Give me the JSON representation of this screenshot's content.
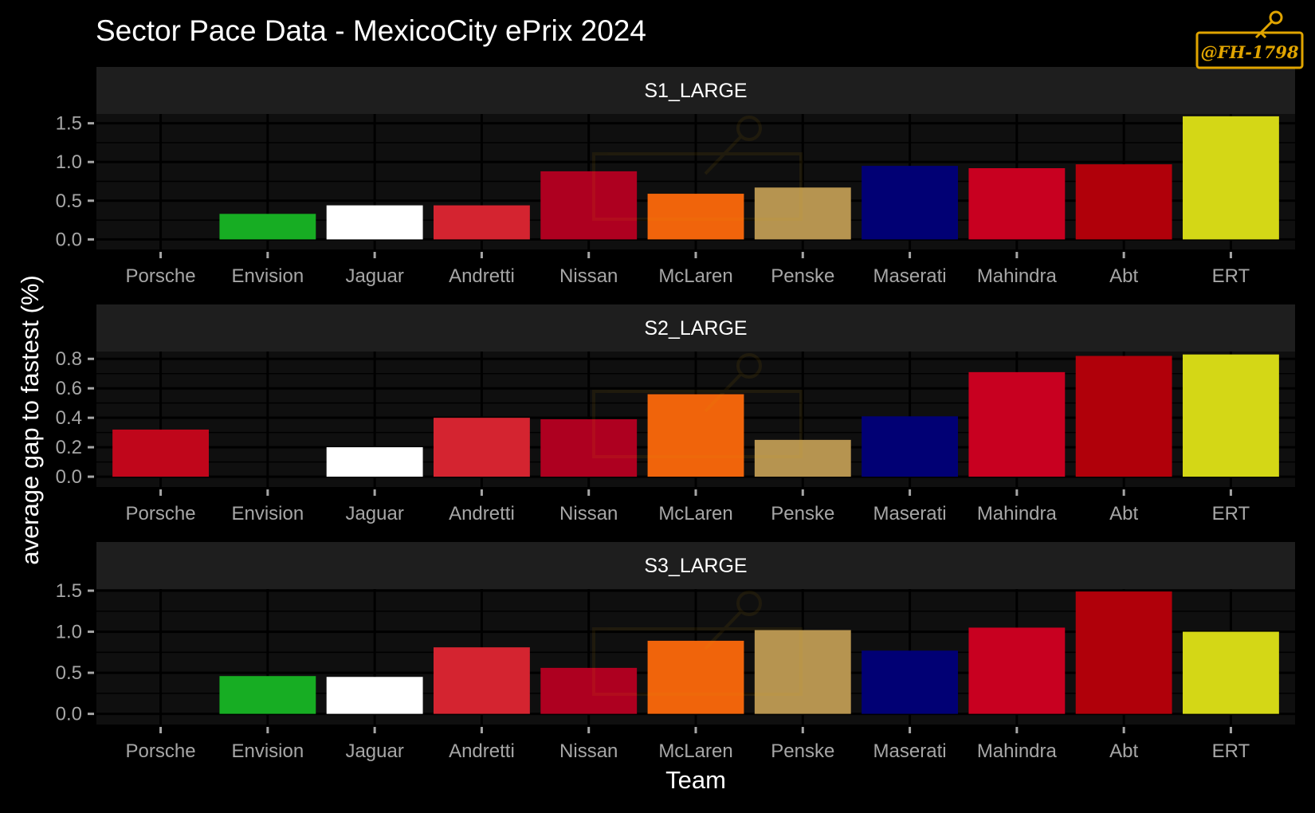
{
  "chart_data": {
    "type": "bar",
    "title": "Sector Pace Data - MexicoCity ePrix 2024",
    "xlabel": "Team",
    "ylabel": "average gap to fastest (%)",
    "categories": [
      "Porsche",
      "Envision",
      "Jaguar",
      "Andretti",
      "Nissan",
      "McLaren",
      "Penske",
      "Maserati",
      "Mahindra",
      "Abt",
      "ERT"
    ],
    "colors": {
      "Porsche": "#c0061b",
      "Envision": "#17ad23",
      "Jaguar": "#ffffff",
      "Andretti": "#d42430",
      "Nissan": "#ae0020",
      "McLaren": "#f0640b",
      "Penske": "#b69450",
      "Maserati": "#010074",
      "Mahindra": "#c80020",
      "Abt": "#b0000a",
      "ERT": "#d4d716"
    },
    "grid": true,
    "background": "#000000",
    "panel_background": "#0f0f0f",
    "strip_background": "#1e1e1e",
    "facets": [
      {
        "label": "S1_LARGE",
        "ylim": [
          -0.13,
          1.62
        ],
        "yticks": [
          0.0,
          0.5,
          1.0,
          1.5
        ],
        "ytick_labels": [
          "0.0",
          "0.5",
          "1.0",
          "1.5"
        ],
        "values": [
          0.0,
          0.33,
          0.44,
          0.44,
          0.88,
          0.59,
          0.67,
          0.95,
          0.92,
          0.97,
          1.59
        ]
      },
      {
        "label": "S2_LARGE",
        "ylim": [
          -0.07,
          0.85
        ],
        "yticks": [
          0.0,
          0.2,
          0.4,
          0.6,
          0.8
        ],
        "ytick_labels": [
          "0.0",
          "0.2",
          "0.4",
          "0.6",
          "0.8"
        ],
        "values": [
          0.32,
          0.0,
          0.2,
          0.4,
          0.39,
          0.56,
          0.25,
          0.41,
          0.71,
          0.82,
          0.83
        ]
      },
      {
        "label": "S3_LARGE",
        "ylim": [
          -0.13,
          1.52
        ],
        "yticks": [
          0.0,
          0.5,
          1.0,
          1.5
        ],
        "ytick_labels": [
          "0.0",
          "0.5",
          "1.0",
          "1.5"
        ],
        "values": [
          0.0,
          0.46,
          0.45,
          0.81,
          0.56,
          0.89,
          1.02,
          0.77,
          1.05,
          1.49,
          1.0
        ]
      }
    ]
  },
  "watermark": {
    "text": "@FH-1798",
    "color": "#e0a400",
    "icon": "key-icon"
  }
}
